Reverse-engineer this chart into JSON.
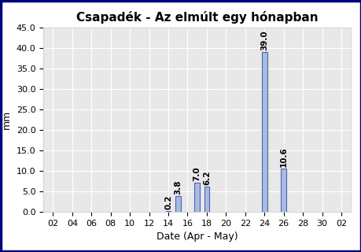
{
  "title": "Csapadék - Az elmúlt egy hónapban",
  "xlabel": "Date (Apr - May)",
  "ylabel": "mm",
  "bar_dates": [
    14,
    15,
    17,
    18,
    24,
    26
  ],
  "bar_values": [
    0.2,
    3.8,
    7.0,
    6.2,
    39.0,
    10.6
  ],
  "bar_labels": [
    "0.2",
    "3.8",
    "7.0",
    "6.2",
    "39.0",
    "10.6"
  ],
  "bar_color": "#aabbdd",
  "bar_edge_color": "#4466bb",
  "x_tick_positions": [
    2,
    4,
    6,
    8,
    10,
    12,
    14,
    16,
    18,
    20,
    22,
    24,
    26,
    28,
    30,
    32
  ],
  "x_tick_labels": [
    "02",
    "04",
    "06",
    "08",
    "10",
    "12",
    "14",
    "16",
    "18",
    "20",
    "22",
    "24",
    "26",
    "28",
    "30",
    "02"
  ],
  "xlim": [
    1,
    33
  ],
  "ylim": [
    0.0,
    45.0
  ],
  "y_ticks": [
    0.0,
    5.0,
    10.0,
    15.0,
    20.0,
    25.0,
    30.0,
    35.0,
    40.0,
    45.0
  ],
  "bar_width": 0.55,
  "grid_color": "#ffffff",
  "plot_bg_color": "#e8e8e8",
  "fig_bg_color": "#ffffff",
  "outer_border_color": "#000080",
  "title_fontsize": 11,
  "label_fontsize": 9,
  "tick_fontsize": 8,
  "annotation_fontsize": 7.5
}
